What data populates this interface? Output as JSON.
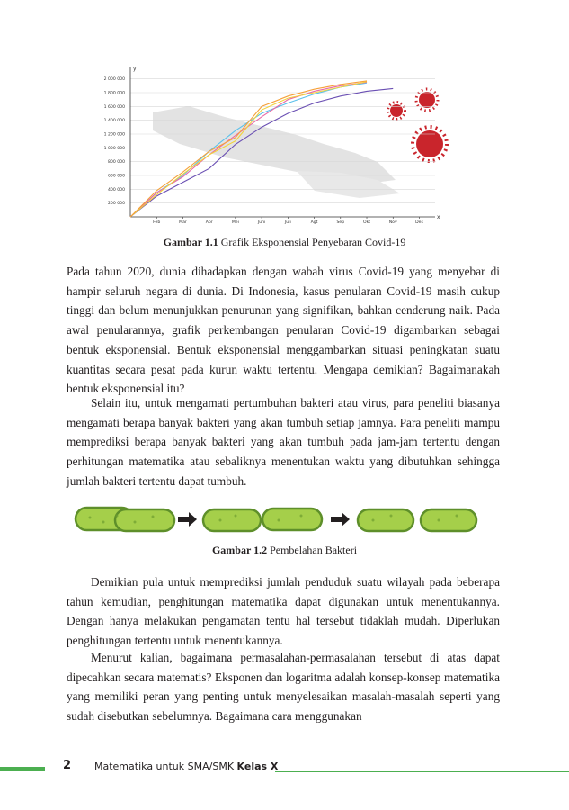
{
  "figure1": {
    "chart_data": {
      "type": "line",
      "x_label": "x",
      "y_label": "y",
      "x": [
        1,
        2,
        3,
        4,
        5,
        6,
        7,
        8,
        9,
        10,
        11
      ],
      "xlim": [
        1,
        12.6
      ],
      "xticks": [
        {
          "value": 2,
          "label": "Feb"
        },
        {
          "value": 3,
          "label": "Mar"
        },
        {
          "value": 4,
          "label": "Apr"
        },
        {
          "value": 5,
          "label": "Mei"
        },
        {
          "value": 6,
          "label": "Juni"
        },
        {
          "value": 7,
          "label": "Juli"
        },
        {
          "value": 8,
          "label": "Agt"
        },
        {
          "value": 9,
          "label": "Sep"
        },
        {
          "value": 10,
          "label": "Okt"
        },
        {
          "value": 11,
          "label": "Nov"
        },
        {
          "value": 12,
          "label": "Des"
        }
      ],
      "ylim": [
        0,
        2100000
      ],
      "yticks": [
        {
          "value": 200000,
          "label": "200 000"
        },
        {
          "value": 400000,
          "label": "400 000"
        },
        {
          "value": 600000,
          "label": "600 000"
        },
        {
          "value": 800000,
          "label": "800 000"
        },
        {
          "value": 1000000,
          "label": "1 000 000"
        },
        {
          "value": 1200000,
          "label": "1 200 000"
        },
        {
          "value": 1400000,
          "label": "1 400 000"
        },
        {
          "value": 1600000,
          "label": "1 600 000"
        },
        {
          "value": 1800000,
          "label": "1 800 000"
        },
        {
          "value": 2000000,
          "label": "2 000 000"
        }
      ],
      "grid": true,
      "series": [
        {
          "color": "#6a4fb3",
          "values": [
            0,
            300000,
            500000,
            700000,
            1050000,
            1300000,
            1500000,
            1650000,
            1750000,
            1820000,
            1860000
          ]
        },
        {
          "color": "#5bc0eb",
          "values": [
            0,
            350000,
            600000,
            950000,
            1250000,
            1500000,
            1650000,
            1780000,
            1880000,
            1940000,
            null
          ]
        },
        {
          "color": "#e86aa6",
          "values": [
            0,
            350000,
            580000,
            900000,
            1180000,
            1450000,
            1700000,
            1820000,
            1900000,
            1950000,
            null
          ]
        },
        {
          "color": "#f2d23c",
          "values": [
            0,
            320000,
            620000,
            900000,
            1100000,
            1550000,
            1720000,
            1800000,
            1880000,
            1960000,
            null
          ]
        },
        {
          "color": "#f6a13a",
          "values": [
            0,
            380000,
            650000,
            950000,
            1150000,
            1600000,
            1750000,
            1850000,
            1920000,
            1970000,
            null
          ]
        }
      ]
    },
    "caption_label": "Gambar 1.1",
    "caption_text": "Grafik Eksponensial Penyebaran Covid-19"
  },
  "paragraphs": [
    "Pada tahun 2020, dunia dihadapkan dengan wabah virus Covid-19 yang menyebar di hampir seluruh negara di dunia. Di Indonesia, kasus penularan Covid-19 masih cukup tinggi dan belum menunjukkan penurunan yang signifikan, bahkan cenderung naik. Pada awal penularannya, grafik perkembangan penularan Covid-19 digambarkan sebagai bentuk eksponensial. Bentuk eksponensial menggambarkan situasi peningkatan suatu kuantitas secara pesat pada kurun waktu tertentu. Mengapa demikian? Bagaimanakah bentuk eksponensial itu?",
    "Selain itu, untuk mengamati pertumbuhan bakteri atau virus, para peneliti biasanya mengamati berapa banyak bakteri yang akan tumbuh setiap jamnya. Para peneliti mampu memprediksi berapa banyak bakteri yang akan tumbuh pada jam-jam tertentu dengan perhitungan matematika atau sebaliknya menentukan waktu yang dibutuhkan sehingga jumlah bakteri tertentu dapat tumbuh.",
    "Demikian pula untuk memprediksi jumlah penduduk suatu wilayah pada beberapa tahun kemudian, penghitungan matematika dapat digunakan untuk menentukannya. Dengan hanya melakukan pengamatan tentu hal tersebut tidaklah mudah. Diperlukan penghitungan tertentu untuk menentukannya.",
    "Menurut kalian, bagaimana permasalahan-permasalahan tersebut di atas dapat dipecahkan secara matematis? Eksponen dan logaritma adalah konsep-konsep matematika yang memiliki peran yang penting untuk menyelesaikan masalah-masalah seperti yang sudah disebutkan sebelumnya. Bagaimana cara menggunakan"
  ],
  "figure2": {
    "caption_label": "Gambar 1.2",
    "caption_text": "Pembelahan Bakteri"
  },
  "footer": {
    "page": "2",
    "title": "Matematika untuk SMA/SMK",
    "class": "Kelas X"
  }
}
